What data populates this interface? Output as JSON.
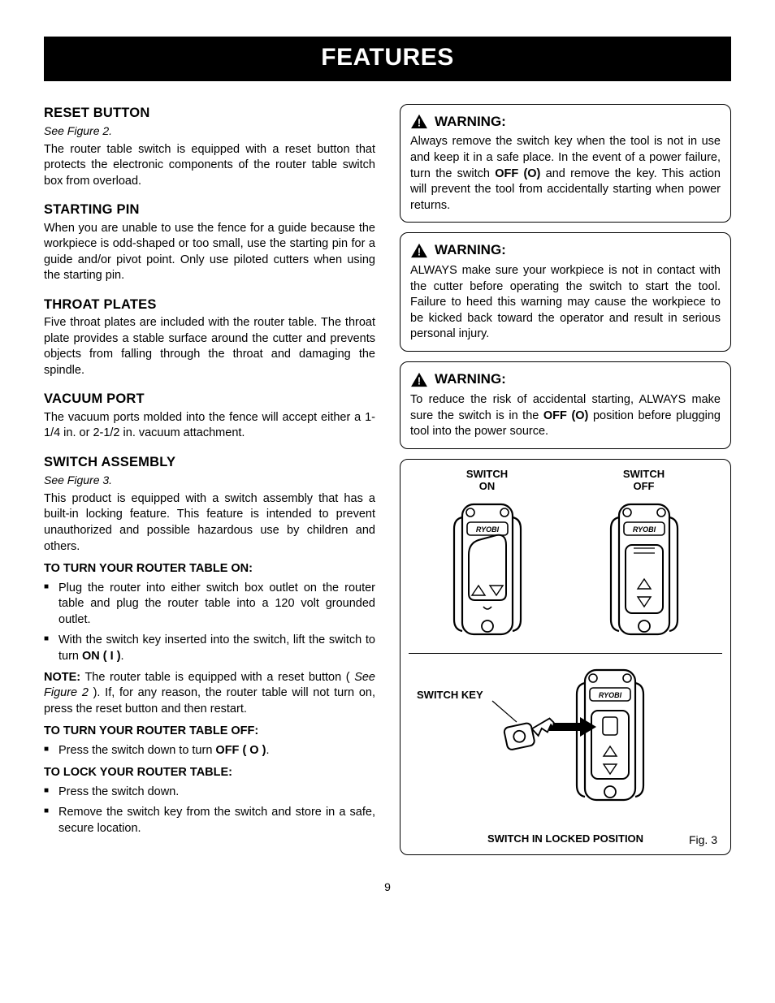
{
  "banner": "FEATURES",
  "page_number": "9",
  "left": {
    "reset": {
      "heading": "RESET BUTTON",
      "fig_ref": "See Figure 2.",
      "body": "The router table switch is equipped with a reset button that protects the electronic components of the router table switch box from overload."
    },
    "starting_pin": {
      "heading": "STARTING PIN",
      "body": "When you are unable to use the fence for a guide because the workpiece is odd-shaped or too small, use the starting pin for a guide and/or pivot point. Only use piloted cutters when using the starting pin."
    },
    "throat": {
      "heading": "THROAT PLATES",
      "body": "Five throat plates are included with the router table. The throat plate provides a stable surface around the cutter and prevents objects from falling through the throat and damaging the spindle."
    },
    "vacuum": {
      "heading": "VACUUM PORT",
      "body": "The vacuum ports molded into the fence will accept either a 1-1/4 in. or 2-1/2 in. vacuum attachment."
    },
    "switch": {
      "heading": "SWITCH ASSEMBLY",
      "fig_ref": "See Figure 3.",
      "intro": "This product is equipped with a switch assembly that has a built-in locking feature. This feature is intended to prevent unauthorized and possible hazardous use by children and others.",
      "on_heading": "TO TURN YOUR ROUTER TABLE ON:",
      "on_items": [
        "Plug the router into either switch box outlet on the router table and plug the router table into a 120 volt grounded outlet.",
        "With the switch key inserted into the switch, lift the switch to turn "
      ],
      "on_bold": "ON ( I )",
      "note_pre": "NOTE:",
      "note_body_a": " The router table is equipped with a reset button ( ",
      "note_italic": "See Figure 2",
      "note_body_b": " ). If, for any reason, the router table will not turn on, press the reset button and then restart.",
      "off_heading": "TO TURN YOUR ROUTER TABLE OFF:",
      "off_item_pre": "Press the switch down to turn ",
      "off_bold": "OFF ( O )",
      "lock_heading": "TO LOCK YOUR ROUTER TABLE:",
      "lock_items": [
        "Press the switch down.",
        "Remove the switch key from the switch and store in a safe, secure location."
      ]
    }
  },
  "right": {
    "warn_label": "WARNING:",
    "warn1_a": "Always remove the switch key when the tool is not in use and keep it in a safe place. In the event of a power failure, turn the switch ",
    "warn1_bold": "OFF (O)",
    "warn1_b": " and remove the key. This action will prevent the tool from accidentally starting when power returns.",
    "warn2": "ALWAYS make sure your workpiece is not in contact with the cutter before operating the switch to start the tool. Failure to heed this warning may cause the workpiece to be kicked back toward the operator and result in serious personal injury.",
    "warn3_a": "To reduce the risk of accidental starting, ALWAYS make sure the switch is in the ",
    "warn3_bold": "OFF (O)",
    "warn3_b": " position before plugging tool into the power source.",
    "fig": {
      "switch_on": "SWITCH\nON",
      "switch_off": "SWITCH\nOFF",
      "switch_key": "SWITCH KEY",
      "locked": "SWITCH IN LOCKED POSITION",
      "fig_num": "Fig. 3"
    }
  },
  "colors": {
    "text": "#000000",
    "bg": "#ffffff",
    "banner_bg": "#000000",
    "banner_fg": "#ffffff"
  }
}
